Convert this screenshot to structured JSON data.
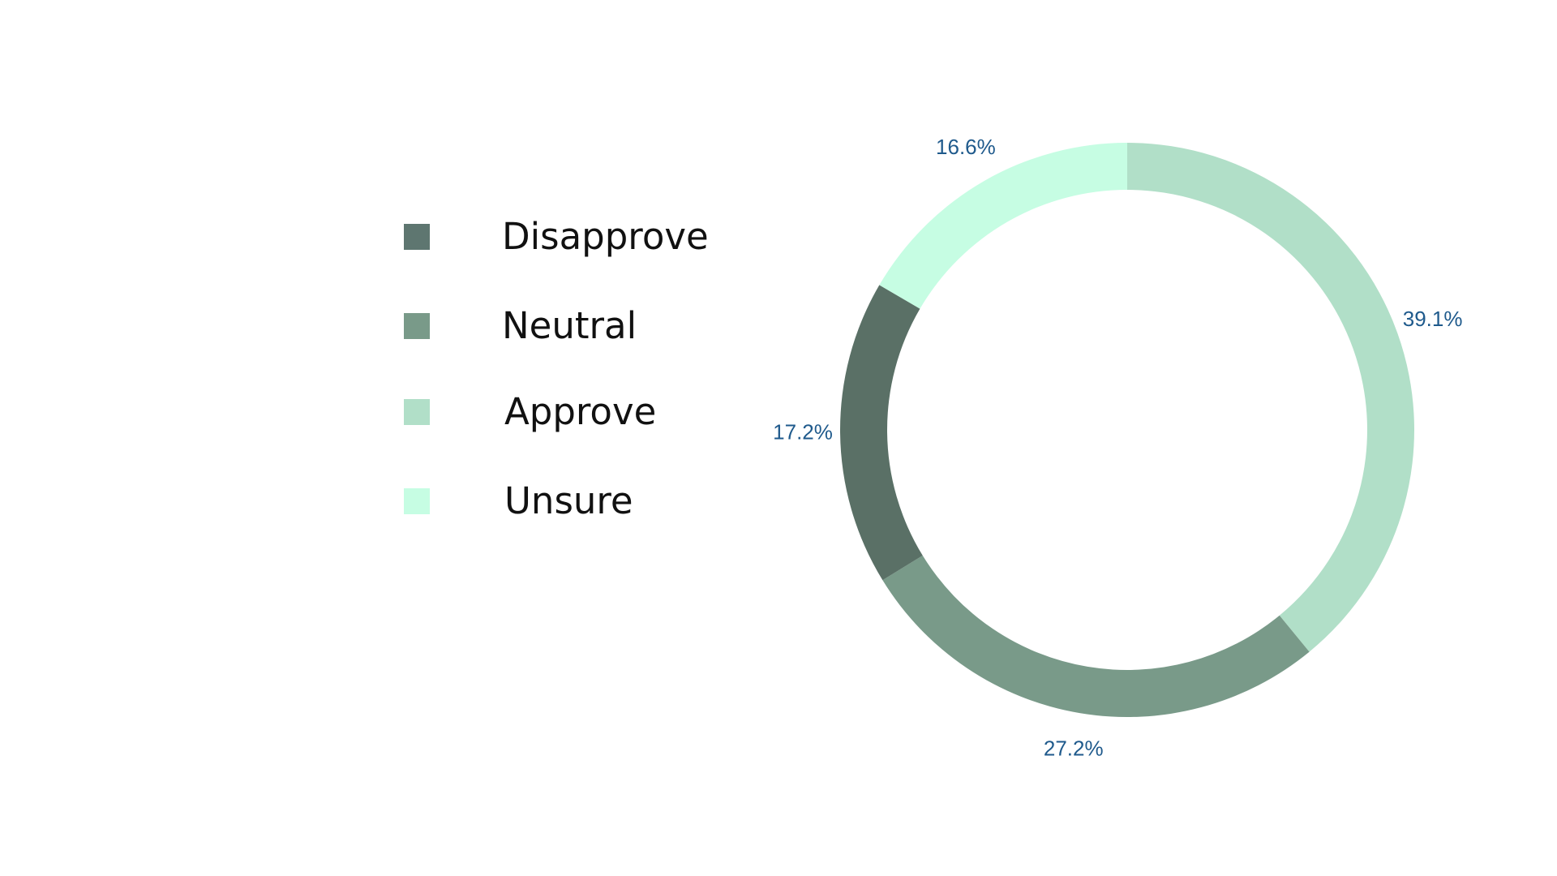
{
  "chart_data": {
    "type": "pie",
    "donut": true,
    "title": "",
    "legend_position": "left",
    "categories": [
      "Disapprove",
      "Neutral",
      "Approve",
      "Unsure"
    ],
    "values": [
      17.2,
      27.2,
      39.1,
      16.6
    ],
    "labels": [
      "17.2%",
      "27.2%",
      "39.1%",
      "16.6%"
    ],
    "colors": [
      "#5a7066",
      "#799a89",
      "#b1dfc8",
      "#c6fde3"
    ],
    "label_color": "#1f5a8c",
    "start_angle_deg": 0,
    "direction": "clockwise",
    "slice_order": [
      "Approve",
      "Neutral",
      "Disapprove",
      "Unsure"
    ]
  },
  "legend": {
    "items": [
      {
        "label": "Disapprove",
        "color": "#5e7670"
      },
      {
        "label": "Neutral",
        "color": "#799a89"
      },
      {
        "label": "Approve",
        "color": "#b1dfc8"
      },
      {
        "label": "Unsure",
        "color": "#c6fde3"
      }
    ]
  }
}
